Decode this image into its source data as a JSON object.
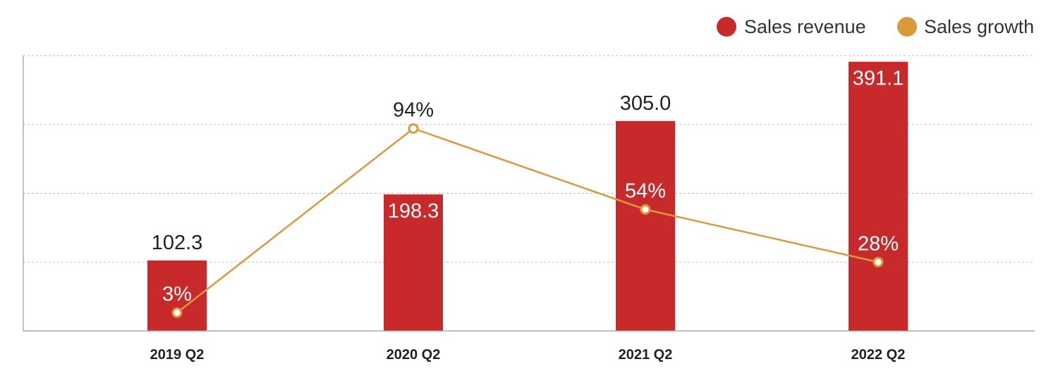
{
  "chart_data": {
    "type": "bar",
    "title": "",
    "xlabel": "",
    "ylabel": "",
    "categories": [
      "2019 Q2",
      "2020 Q2",
      "2021 Q2",
      "2022 Q2"
    ],
    "series": [
      {
        "name": "Sales revenue",
        "kind": "bar",
        "values": [
          102.3,
          198.3,
          305.0,
          391.1
        ],
        "labels": [
          "102.3",
          "198.3",
          "305.0",
          "391.1"
        ],
        "color": "#c8292b"
      },
      {
        "name": "Sales growth",
        "kind": "line",
        "values": [
          3,
          94,
          54,
          28
        ],
        "labels": [
          "3%",
          "94%",
          "54%",
          "28%"
        ],
        "color": "#d99a3c"
      }
    ],
    "ylim_revenue": [
      0,
      400
    ],
    "ylim_growth": [
      -6,
      130
    ],
    "grid": true,
    "legend_position": "top-right"
  }
}
